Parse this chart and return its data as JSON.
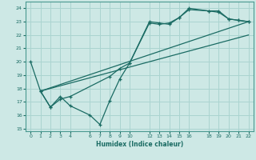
{
  "xlabel": "Humidex (Indice chaleur)",
  "ylabel": "",
  "bg_color": "#cde8e5",
  "grid_color": "#aad4d0",
  "line_color": "#1a6b63",
  "spine_color": "#4a9990",
  "xlim": [
    -0.5,
    22.5
  ],
  "ylim": [
    14.8,
    24.5
  ],
  "xticks": [
    0,
    1,
    2,
    3,
    4,
    6,
    7,
    8,
    9,
    10,
    12,
    13,
    14,
    15,
    16,
    18,
    19,
    20,
    21,
    22
  ],
  "yticks": [
    15,
    16,
    17,
    18,
    19,
    20,
    21,
    22,
    23,
    24
  ],
  "series": [
    {
      "x": [
        0,
        1,
        2,
        3,
        4,
        6,
        7,
        8,
        9,
        10,
        12,
        13,
        14,
        15,
        16,
        18,
        19,
        20,
        21,
        22
      ],
      "y": [
        20,
        17.8,
        16.6,
        17.4,
        16.7,
        16.0,
        15.3,
        17.1,
        18.7,
        19.9,
        23.0,
        22.9,
        22.8,
        23.3,
        23.9,
        23.8,
        23.7,
        23.2,
        23.1,
        23.0
      ],
      "marker": true
    },
    {
      "x": [
        1,
        2,
        3,
        4,
        8,
        9,
        10,
        12,
        13,
        14,
        15,
        16,
        18,
        19,
        20,
        21,
        22
      ],
      "y": [
        17.8,
        16.6,
        17.2,
        17.4,
        18.9,
        19.5,
        19.9,
        22.9,
        22.8,
        22.9,
        23.3,
        24.0,
        23.8,
        23.8,
        23.2,
        23.1,
        23.0
      ],
      "marker": true
    },
    {
      "x": [
        1,
        22
      ],
      "y": [
        17.8,
        23.0
      ],
      "marker": false
    },
    {
      "x": [
        1,
        22
      ],
      "y": [
        17.8,
        22.0
      ],
      "marker": false
    }
  ]
}
